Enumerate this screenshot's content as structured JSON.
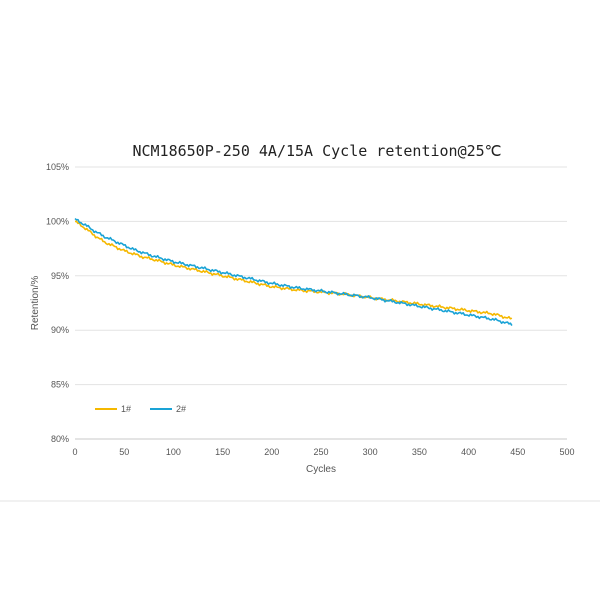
{
  "chart_data": {
    "type": "line",
    "title": "NCM18650P-250  4A/15A Cycle retention@25℃",
    "xlabel": "Cycles",
    "ylabel": "Retention/%",
    "xlim": [
      0,
      500
    ],
    "ylim": [
      80,
      105
    ],
    "x_ticks": [
      "0",
      "50",
      "100",
      "150",
      "200",
      "250",
      "300",
      "350",
      "400",
      "450",
      "500"
    ],
    "y_ticks": [
      "80%",
      "85%",
      "90%",
      "95%",
      "100%",
      "105%"
    ],
    "grid": "horizontal",
    "legend_position": "bottom-left",
    "series": [
      {
        "name": "1#",
        "color": "#f5b800",
        "x": [
          0,
          10,
          20,
          30,
          40,
          50,
          60,
          70,
          80,
          100,
          120,
          150,
          175,
          200,
          225,
          250,
          275,
          300,
          325,
          350,
          375,
          400,
          425,
          445
        ],
        "y": [
          100.0,
          99.4,
          98.7,
          98.1,
          97.7,
          97.3,
          97.0,
          96.7,
          96.5,
          96.0,
          95.6,
          95.0,
          94.5,
          94.0,
          93.7,
          93.5,
          93.3,
          93.0,
          92.7,
          92.4,
          92.1,
          91.8,
          91.5,
          91.0
        ]
      },
      {
        "name": "2#",
        "color": "#1aa3d6",
        "x": [
          0,
          10,
          20,
          30,
          40,
          50,
          60,
          70,
          80,
          100,
          120,
          150,
          175,
          200,
          225,
          250,
          275,
          300,
          325,
          350,
          375,
          400,
          425,
          445
        ],
        "y": [
          100.2,
          99.7,
          99.1,
          98.6,
          98.2,
          97.8,
          97.4,
          97.1,
          96.8,
          96.3,
          95.9,
          95.3,
          94.8,
          94.3,
          93.9,
          93.6,
          93.3,
          93.0,
          92.6,
          92.2,
          91.8,
          91.4,
          91.0,
          90.5
        ]
      }
    ]
  }
}
